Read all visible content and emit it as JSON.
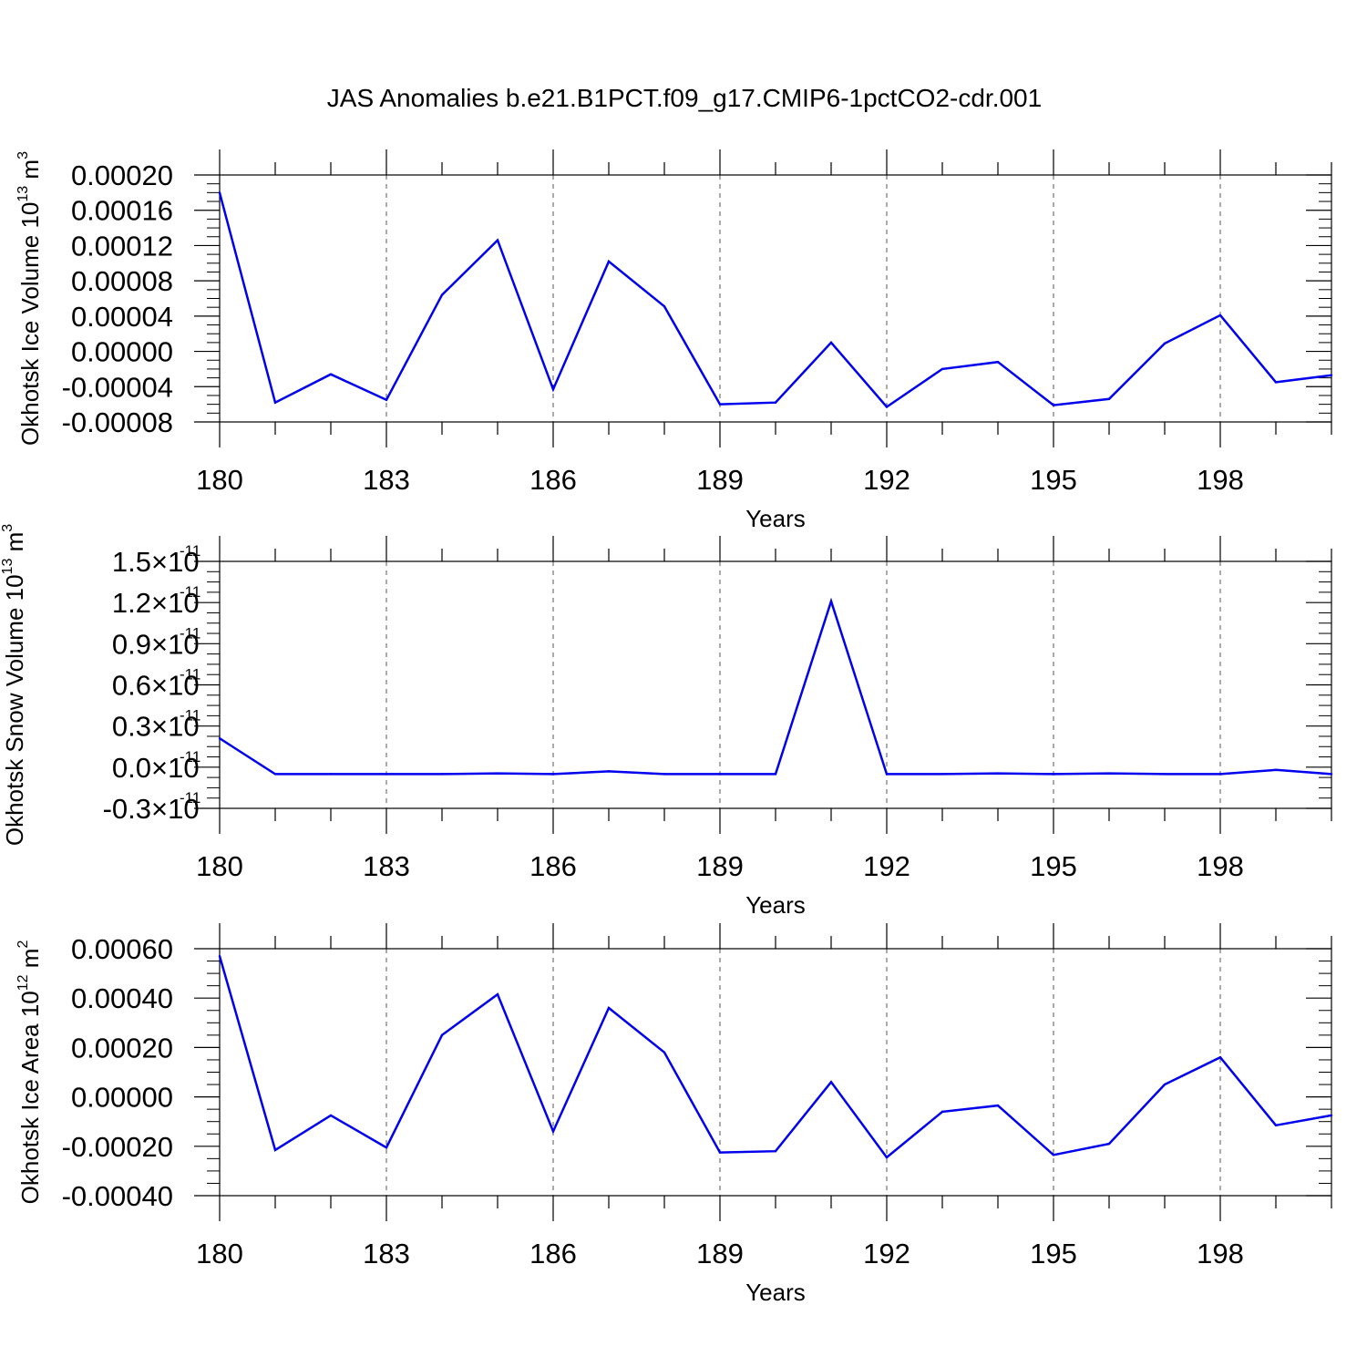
{
  "title": "JAS Anomalies b.e21.B1PCT.f09_g17.CMIP6-1pctCO2-cdr.001",
  "colors": {
    "line": "#0000ee",
    "axes": "#000000",
    "grid": "#555555"
  },
  "chart_data": [
    {
      "type": "line",
      "xlabel": "Years",
      "ylabel": {
        "text": "Okhotsk Ice Volume 10",
        "exp": "13",
        "unit": " m",
        "unit_exp": "3"
      },
      "x": [
        180,
        181,
        182,
        183,
        184,
        185,
        186,
        187,
        188,
        189,
        190,
        191,
        192,
        193,
        194,
        195,
        196,
        197,
        198,
        199,
        200
      ],
      "values": [
        0.00018,
        -5.8e-05,
        -2.6e-05,
        -5.5e-05,
        6.4e-05,
        0.000126,
        -4.3e-05,
        0.000102,
        5.1e-05,
        -6e-05,
        -5.8e-05,
        1e-05,
        -6.3e-05,
        -2e-05,
        -1.2e-05,
        -6.1e-05,
        -5.4e-05,
        9e-06,
        4.1e-05,
        -3.5e-05,
        -2.7e-05
      ],
      "xlim": [
        180,
        200
      ],
      "ylim": [
        -8e-05,
        0.0002
      ],
      "xticks": [
        180,
        183,
        186,
        189,
        192,
        195,
        198
      ],
      "xtick_labels": [
        "180",
        "183",
        "186",
        "189",
        "192",
        "195",
        "198"
      ],
      "yticks": [
        0.0002,
        0.00016,
        0.00012,
        8e-05,
        4e-05,
        0,
        -4e-05,
        -8e-05
      ],
      "ytick_labels": [
        "0.00020",
        "0.00016",
        "0.00012",
        "0.00008",
        "0.00004",
        "0.00000",
        "-0.00004",
        "-0.00008"
      ],
      "grid": "vertical dashed at major x ticks"
    },
    {
      "type": "line",
      "xlabel": "Years",
      "ylabel": {
        "text": "Okhotsk Snow Volume 10",
        "exp": "13",
        "unit": " m",
        "unit_exp": "3"
      },
      "x": [
        180,
        181,
        182,
        183,
        184,
        185,
        186,
        187,
        188,
        189,
        190,
        191,
        192,
        193,
        194,
        195,
        196,
        197,
        198,
        199,
        200
      ],
      "values": [
        2.1e-12,
        -5e-13,
        -5e-13,
        -5e-13,
        -5e-13,
        -4.5e-13,
        -5e-13,
        -3e-13,
        -5e-13,
        -5e-13,
        -5e-13,
        1.21e-11,
        -5e-13,
        -5e-13,
        -4.5e-13,
        -5e-13,
        -4.5e-13,
        -5e-13,
        -5e-13,
        -2e-13,
        -5e-13
      ],
      "xlim": [
        180,
        200
      ],
      "ylim": [
        -3e-12,
        1.5e-11
      ],
      "xticks": [
        180,
        183,
        186,
        189,
        192,
        195,
        198
      ],
      "xtick_labels": [
        "180",
        "183",
        "186",
        "189",
        "192",
        "195",
        "198"
      ],
      "yticks": [
        1.5e-11,
        1.2e-11,
        9e-12,
        6e-12,
        3e-12,
        0,
        -3e-12
      ],
      "ytick_labels": [
        "1.5",
        "1.2",
        "0.9",
        "0.6",
        "0.3",
        "0.0",
        "-0.3"
      ],
      "ytick_suffix": "×10",
      "ytick_exp": "-11",
      "grid": "vertical dashed at major x ticks"
    },
    {
      "type": "line",
      "xlabel": "Years",
      "ylabel": {
        "text": "Okhotsk Ice Area 10",
        "exp": "12",
        "unit": " m",
        "unit_exp": "2"
      },
      "x": [
        180,
        181,
        182,
        183,
        184,
        185,
        186,
        187,
        188,
        189,
        190,
        191,
        192,
        193,
        194,
        195,
        196,
        197,
        198,
        199,
        200
      ],
      "values": [
        0.00057,
        -0.000215,
        -7.5e-05,
        -0.000205,
        0.00025,
        0.000415,
        -0.00014,
        0.00036,
        0.00018,
        -0.000225,
        -0.00022,
        6e-05,
        -0.000245,
        -6e-05,
        -3.5e-05,
        -0.000235,
        -0.00019,
        5e-05,
        0.00016,
        -0.000115,
        -7.5e-05
      ],
      "xlim": [
        180,
        200
      ],
      "ylim": [
        -0.0004,
        0.0006
      ],
      "xticks": [
        180,
        183,
        186,
        189,
        192,
        195,
        198
      ],
      "xtick_labels": [
        "180",
        "183",
        "186",
        "189",
        "192",
        "195",
        "198"
      ],
      "yticks": [
        0.0006,
        0.0004,
        0.0002,
        0,
        -0.0002,
        -0.0004
      ],
      "ytick_labels": [
        "0.00060",
        "0.00040",
        "0.00020",
        "0.00000",
        "-0.00020",
        "-0.00040"
      ],
      "grid": "vertical dashed at major x ticks"
    }
  ]
}
